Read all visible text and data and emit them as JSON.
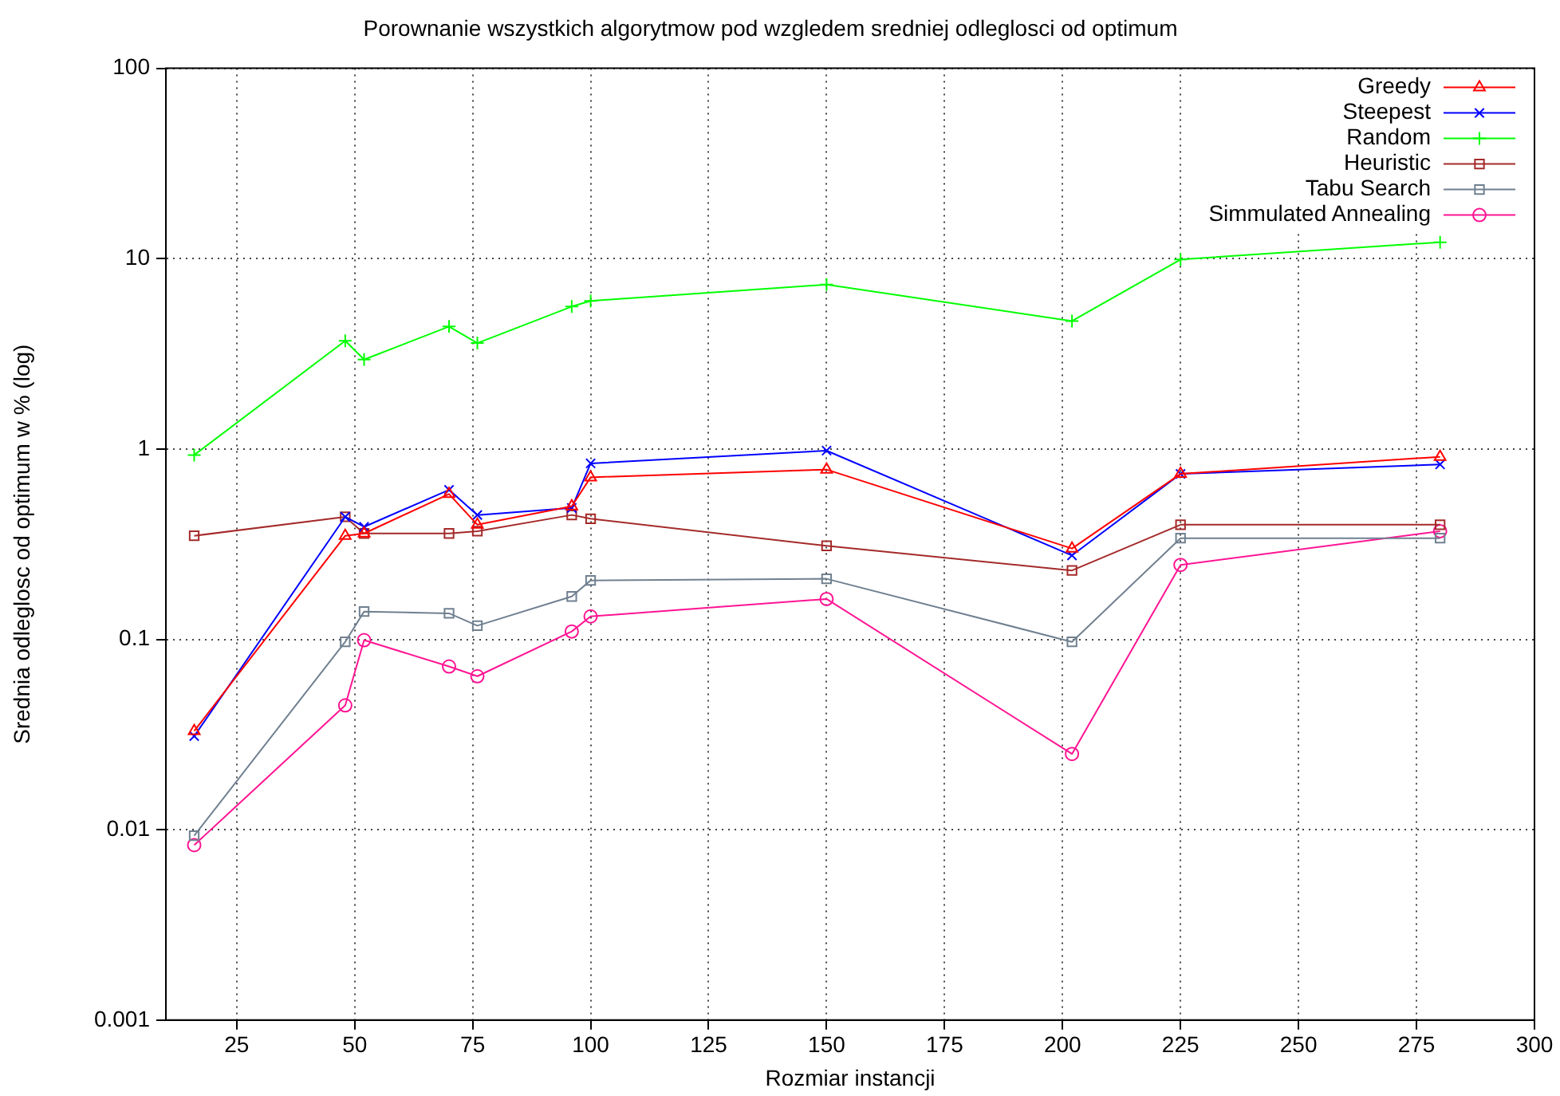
{
  "chart_data": {
    "type": "line",
    "title": "Porownanie wszystkich algorytmow pod wzgledem sredniej odleglosci od optimum",
    "xlabel": "Rozmiar instancji",
    "ylabel": "Srednia odleglosc od optimum w % (log)",
    "x": [
      16,
      48,
      52,
      70,
      76,
      96,
      100,
      150,
      202,
      225,
      280
    ],
    "xlim": [
      10,
      300
    ],
    "xticks": [
      25,
      50,
      75,
      100,
      125,
      150,
      175,
      200,
      225,
      250,
      275,
      300
    ],
    "log": "y",
    "ylim": [
      0.001,
      100
    ],
    "yticks": [
      0.001,
      0.01,
      0.1,
      1,
      10,
      100
    ],
    "grid": true,
    "legend": "top right",
    "line_style": "solid",
    "series": [
      {
        "name": "Greedy",
        "color": "#ff0000",
        "marker": "triangle",
        "values": [
          0.033,
          0.35,
          0.36,
          0.58,
          0.4,
          0.5,
          0.71,
          0.78,
          0.3,
          0.74,
          0.91
        ]
      },
      {
        "name": "Steepest",
        "color": "#0000ff",
        "marker": "cross",
        "values": [
          0.031,
          0.44,
          0.39,
          0.61,
          0.45,
          0.49,
          0.84,
          0.98,
          0.276,
          0.74,
          0.83
        ]
      },
      {
        "name": "Random",
        "color": "#00ff00",
        "marker": "cross",
        "values": [
          0.93,
          3.7,
          2.95,
          4.4,
          3.6,
          5.6,
          6.0,
          7.3,
          4.7,
          9.9,
          12.2
        ]
      },
      {
        "name": "Heuristic",
        "color": "#a52a2a",
        "marker": "square",
        "values": [
          0.35,
          0.44,
          0.36,
          0.36,
          0.37,
          0.45,
          0.43,
          0.31,
          0.23,
          0.4,
          0.4
        ]
      },
      {
        "name": "Tabu Search",
        "color": "#708090",
        "marker": "square",
        "values": [
          0.0093,
          0.097,
          0.14,
          0.137,
          0.118,
          0.168,
          0.204,
          0.208,
          0.097,
          0.34,
          0.34
        ]
      },
      {
        "name": "Simmulated Annealing",
        "color": "#ff1493",
        "marker": "circle",
        "values": [
          0.0083,
          0.045,
          0.099,
          0.072,
          0.064,
          0.11,
          0.132,
          0.163,
          0.025,
          0.246,
          0.37
        ]
      }
    ]
  }
}
